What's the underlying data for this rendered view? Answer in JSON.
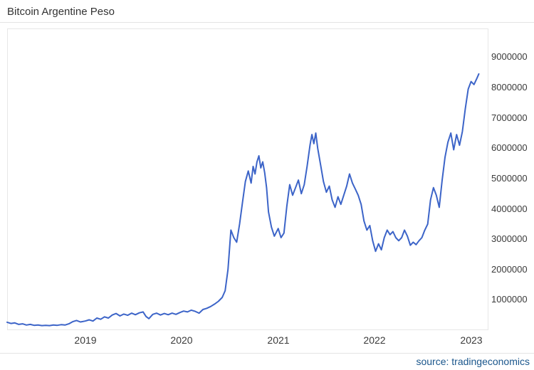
{
  "header": {
    "title": "Bitcoin Argentine Peso"
  },
  "footer": {
    "source_text": "source: tradingeconomics"
  },
  "colors": {
    "line": "#3c64c8",
    "title_text": "#333333",
    "tick_text": "#3a3a3a",
    "source_text": "#1a568c",
    "divider": "#e4e4e4",
    "plot_border": "#e7e7e7",
    "background": "#ffffff"
  },
  "chart_data": {
    "type": "line",
    "title": "Bitcoin Argentine Peso",
    "xlabel": "",
    "ylabel": "",
    "grid": false,
    "legend": false,
    "x_tick_labels": [
      "2019",
      "2020",
      "2021",
      "2022",
      "2023"
    ],
    "x_tick_values": [
      2019,
      2020,
      2021,
      2022,
      2023
    ],
    "y_tick_values": [
      1000000,
      2000000,
      3000000,
      4000000,
      5000000,
      6000000,
      7000000,
      8000000,
      9000000
    ],
    "xlim": [
      2018.19,
      2023.18
    ],
    "ylim": [
      0,
      9950000
    ],
    "x": [
      2018.19,
      2018.23,
      2018.27,
      2018.31,
      2018.35,
      2018.39,
      2018.43,
      2018.47,
      2018.51,
      2018.55,
      2018.59,
      2018.63,
      2018.67,
      2018.71,
      2018.75,
      2018.79,
      2018.83,
      2018.87,
      2018.91,
      2018.95,
      2019.0,
      2019.04,
      2019.08,
      2019.12,
      2019.16,
      2019.2,
      2019.24,
      2019.28,
      2019.32,
      2019.36,
      2019.4,
      2019.44,
      2019.48,
      2019.52,
      2019.56,
      2019.6,
      2019.63,
      2019.66,
      2019.7,
      2019.74,
      2019.78,
      2019.82,
      2019.86,
      2019.9,
      2019.94,
      2019.98,
      2020.02,
      2020.06,
      2020.1,
      2020.14,
      2020.18,
      2020.22,
      2020.26,
      2020.3,
      2020.34,
      2020.38,
      2020.42,
      2020.45,
      2020.48,
      2020.51,
      2020.54,
      2020.57,
      2020.6,
      2020.63,
      2020.66,
      2020.69,
      2020.72,
      2020.74,
      2020.76,
      2020.78,
      2020.8,
      2020.82,
      2020.84,
      2020.86,
      2020.88,
      2020.9,
      2020.93,
      2020.96,
      2021.0,
      2021.03,
      2021.06,
      2021.09,
      2021.12,
      2021.15,
      2021.18,
      2021.21,
      2021.24,
      2021.27,
      2021.3,
      2021.33,
      2021.35,
      2021.37,
      2021.39,
      2021.41,
      2021.44,
      2021.47,
      2021.5,
      2021.53,
      2021.56,
      2021.59,
      2021.62,
      2021.65,
      2021.68,
      2021.71,
      2021.74,
      2021.77,
      2021.8,
      2021.83,
      2021.86,
      2021.89,
      2021.92,
      2021.95,
      2021.98,
      2022.01,
      2022.04,
      2022.07,
      2022.1,
      2022.13,
      2022.16,
      2022.19,
      2022.22,
      2022.25,
      2022.28,
      2022.31,
      2022.34,
      2022.37,
      2022.4,
      2022.43,
      2022.46,
      2022.49,
      2022.52,
      2022.55,
      2022.58,
      2022.61,
      2022.64,
      2022.67,
      2022.7,
      2022.73,
      2022.76,
      2022.79,
      2022.82,
      2022.85,
      2022.88,
      2022.91,
      2022.94,
      2022.97,
      2023.0,
      2023.03,
      2023.06,
      2023.08
    ],
    "values": [
      260000,
      220000,
      240000,
      190000,
      210000,
      170000,
      190000,
      160000,
      170000,
      150000,
      160000,
      150000,
      170000,
      160000,
      180000,
      170000,
      210000,
      280000,
      320000,
      270000,
      300000,
      340000,
      300000,
      400000,
      360000,
      440000,
      400000,
      500000,
      550000,
      470000,
      530000,
      490000,
      560000,
      510000,
      570000,
      600000,
      450000,
      380000,
      520000,
      560000,
      500000,
      550000,
      510000,
      560000,
      520000,
      580000,
      630000,
      600000,
      660000,
      620000,
      560000,
      680000,
      720000,
      780000,
      860000,
      950000,
      1080000,
      1300000,
      2000000,
      3300000,
      3050000,
      2900000,
      3500000,
      4200000,
      4900000,
      5250000,
      4850000,
      5400000,
      5150000,
      5550000,
      5750000,
      5350000,
      5550000,
      5200000,
      4700000,
      3900000,
      3400000,
      3100000,
      3350000,
      3050000,
      3200000,
      4100000,
      4800000,
      4450000,
      4700000,
      4950000,
      4500000,
      4800000,
      5400000,
      6100000,
      6450000,
      6150000,
      6500000,
      6000000,
      5450000,
      4900000,
      4550000,
      4750000,
      4300000,
      4050000,
      4400000,
      4150000,
      4450000,
      4750000,
      5150000,
      4850000,
      4650000,
      4450000,
      4150000,
      3600000,
      3300000,
      3450000,
      2950000,
      2600000,
      2850000,
      2650000,
      3050000,
      3300000,
      3150000,
      3250000,
      3050000,
      2950000,
      3050000,
      3300000,
      3100000,
      2800000,
      2900000,
      2820000,
      2950000,
      3050000,
      3300000,
      3500000,
      4300000,
      4700000,
      4450000,
      4050000,
      4950000,
      5700000,
      6200000,
      6500000,
      5950000,
      6450000,
      6100000,
      6550000,
      7300000,
      7950000,
      8200000,
      8100000,
      8300000,
      8450000
    ]
  }
}
